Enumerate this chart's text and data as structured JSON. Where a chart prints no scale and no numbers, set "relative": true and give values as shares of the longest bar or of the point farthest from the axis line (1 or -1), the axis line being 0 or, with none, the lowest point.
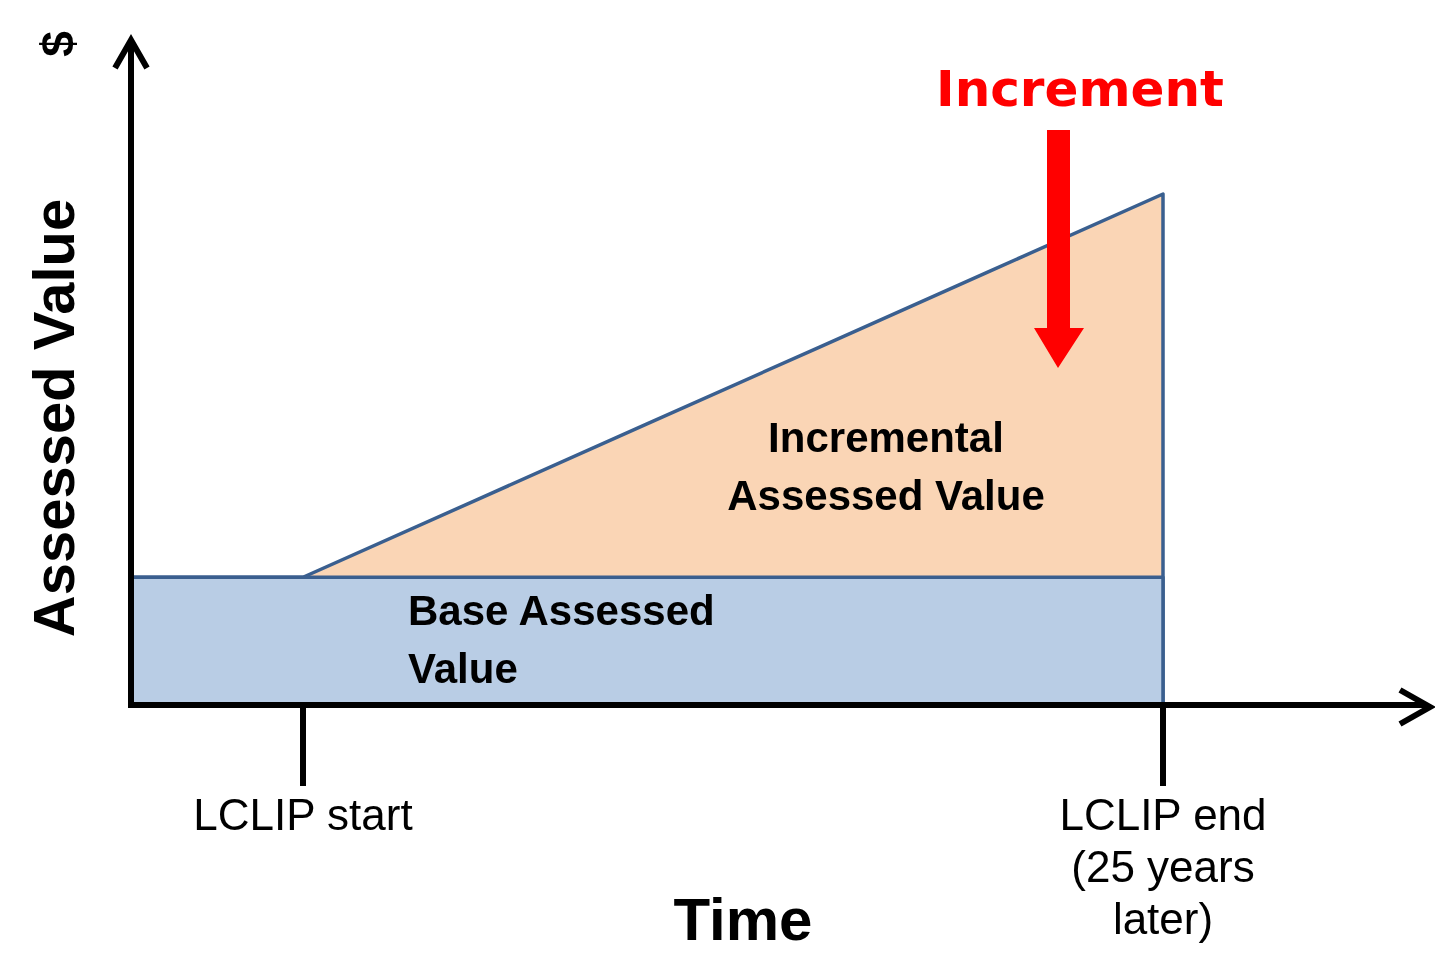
{
  "chart_data": {
    "type": "area",
    "relative": true,
    "xlabel": "Time",
    "ylabel": "Assessed Value",
    "categories": [
      null,
      "LCLIP start",
      null,
      null,
      null,
      null,
      "LCLIP end (25 years later)"
    ],
    "series": [
      {
        "name": "Incremental Assessed Value",
        "color": "#fad5b5",
        "values": [
          0.25,
          0.25,
          0.4,
          0.55,
          0.7,
          0.85,
          1
        ]
      },
      {
        "name": "Base Assessed Value",
        "color": "#b9cde5",
        "values": [
          0.25,
          0.25,
          0.25,
          0.25,
          0.25,
          0.25,
          0.25
        ]
      }
    ],
    "annotations": [
      "$",
      "Increment"
    ],
    "tick_labels": "x",
    "legend": false
  }
}
